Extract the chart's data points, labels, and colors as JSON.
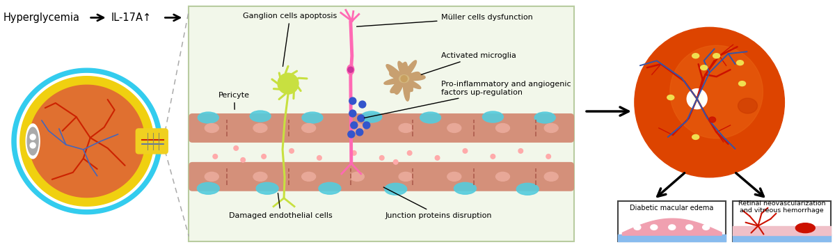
{
  "bg_color": "#ffffff",
  "center_box_color": "#f2f7ea",
  "center_box_edge": "#b8cca0",
  "labels": {
    "hyperglycemia": "Hyperglycemia",
    "il17a": "IL-17A↑",
    "ganglion": "Ganglion cells apoptosis",
    "muller": "Müller cells dysfunction",
    "microglia": "Activated microglia",
    "proinflam": "Pro-inflammatory and angiogenic\nfactors up-regulation",
    "pericyte": "Pericyte",
    "damaged": "Damaged endothelial cells",
    "junction": "Junction proteins disruption",
    "diabetic_macular": "Diabetic macular edema",
    "retinal_neo": "Retinal neovascularization\nand vitreous hemorrhage"
  },
  "colors": {
    "ganglion_neuron": "#c8e040",
    "muller_cell": "#ff69b4",
    "microglia_cell": "#c8a070",
    "microglia_nucleus": "#d4b880",
    "endothelial": "#d4907a",
    "endothelial_nucleus": "#c07060",
    "pericyte_blob": "#55ccdd",
    "blue_dots": "#3355cc",
    "pink_scatter": "#ffaaaa",
    "retina_orange": "#e05000",
    "retina_mid": "#e86818",
    "vessel_red": "#cc1100",
    "vessel_blue": "#3355aa",
    "eye_outer_white": "#ffffff",
    "eye_cyan": "#33ccee",
    "eye_yellow": "#f0d010",
    "eye_orange": "#e07030",
    "eye_red_vessel": "#cc2200",
    "eye_blue_vessel": "#4466bb",
    "eye_gray_vessel": "#888888",
    "lens_gray": "#aaaaaa",
    "optic_yellow": "#f0d020",
    "box_pink": "#f0a0b0",
    "box_blue": "#88bbee",
    "junction_color": "#b06050"
  }
}
